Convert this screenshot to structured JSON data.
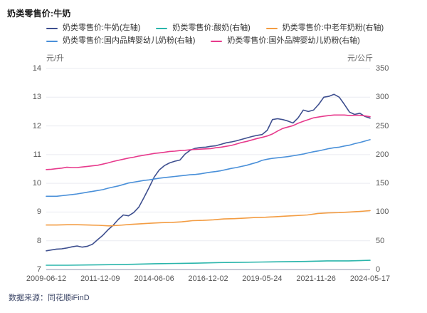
{
  "chart_data": {
    "type": "line",
    "title": "奶类零售价:牛奶",
    "source": "数据来源：同花顺iFinD",
    "legend_position": "top",
    "grid": "horizontal-only",
    "grid_color": "#e9ebf1",
    "axis_color": "#b3b9c9",
    "left_axis": {
      "unit": "元/升",
      "min": 7,
      "max": 14,
      "ticks": [
        14,
        13,
        12,
        11,
        10,
        9,
        8,
        7
      ]
    },
    "right_axis": {
      "unit": "元/公斤",
      "min": 0,
      "max": 350,
      "ticks": [
        350,
        300,
        250,
        200,
        150,
        100,
        50,
        0
      ]
    },
    "x_ticks": [
      "2009-06-12",
      "2011-12-09",
      "2014-06-06",
      "2016-12-02",
      "2019-05-24",
      "2021-11-26",
      "2024-05-17"
    ],
    "series": [
      {
        "name": "奶类零售价:牛奶(左轴)",
        "axis": "left",
        "color": "#3e4f8f",
        "values": [
          7.65,
          7.68,
          7.71,
          7.72,
          7.75,
          7.79,
          7.82,
          7.78,
          7.81,
          7.88,
          8.04,
          8.19,
          8.38,
          8.54,
          8.74,
          8.9,
          8.87,
          8.98,
          9.17,
          9.5,
          9.85,
          10.22,
          10.47,
          10.62,
          10.71,
          10.77,
          10.81,
          11.02,
          11.15,
          11.22,
          11.25,
          11.26,
          11.29,
          11.31,
          11.36,
          11.41,
          11.44,
          11.48,
          11.53,
          11.58,
          11.63,
          11.67,
          11.7,
          11.85,
          12.22,
          12.25,
          12.22,
          12.17,
          12.1,
          12.28,
          12.55,
          12.5,
          12.55,
          12.75,
          13.0,
          13.03,
          13.1,
          13.0,
          12.75,
          12.48,
          12.4,
          12.44,
          12.33,
          12.27
        ]
      },
      {
        "name": "奶类零售价:酸奶(右轴)",
        "axis": "right",
        "color": "#2ab5ab",
        "values": [
          7.5,
          7.5,
          8,
          8.5,
          9,
          10,
          10.5,
          11,
          12,
          12.5,
          13,
          13.5,
          14,
          15,
          15,
          16
        ]
      },
      {
        "name": "奶类零售价:中老年奶粉(右轴)",
        "axis": "right",
        "color": "#f39c42",
        "values": [
          77.5,
          77.5,
          78,
          78,
          77.5,
          77,
          76,
          77,
          78.5,
          79.5,
          80.5,
          81.5,
          82,
          83,
          85,
          85.5,
          86.5,
          88,
          88.5,
          89.5,
          90.5,
          91,
          92,
          93,
          94,
          95,
          97.5,
          98.5,
          99,
          100,
          101,
          102.5
        ]
      },
      {
        "name": "奶类零售价:国内品牌婴幼儿奶粉(右轴)",
        "axis": "right",
        "color": "#4a90d9",
        "values": [
          127.5,
          127.5,
          127.5,
          128.5,
          129.5,
          130.5,
          131.5,
          133,
          134.5,
          136,
          137.5,
          139,
          141.5,
          143.5,
          145.5,
          148,
          150.5,
          152,
          153.5,
          155,
          156,
          157.5,
          159,
          160,
          161,
          162,
          163,
          164,
          165,
          165.5,
          166.5,
          168,
          169.5,
          170.5,
          172,
          174,
          176,
          177.5,
          179.5,
          181.5,
          184,
          186.5,
          190,
          192,
          193.5,
          194.5,
          195.5,
          196.5,
          198,
          199.5,
          201,
          203,
          205,
          206.5,
          208.5,
          210.5,
          212,
          213,
          215,
          216.5,
          219,
          221,
          223.5,
          226
        ]
      },
      {
        "name": "奶类零售价:国外品牌婴幼儿奶粉(右轴)",
        "axis": "right",
        "color": "#e73a8c",
        "values": [
          174,
          174.5,
          175.5,
          176.5,
          178,
          177.5,
          177.5,
          178.5,
          179.5,
          180.5,
          181.5,
          183.5,
          185.5,
          188,
          190,
          192,
          194,
          195.5,
          197.5,
          199,
          200.5,
          202,
          203,
          204,
          205.5,
          206,
          207,
          207.5,
          208.5,
          209,
          209.5,
          210,
          210.5,
          212,
          213,
          214.5,
          216,
          218.5,
          221,
          223,
          225.5,
          228,
          230,
          232.5,
          236,
          241,
          245.5,
          248,
          250.5,
          254.5,
          258,
          261,
          264,
          265.5,
          267,
          268,
          269,
          269,
          269,
          268,
          268.5,
          268.5,
          267.5,
          266
        ]
      }
    ]
  }
}
